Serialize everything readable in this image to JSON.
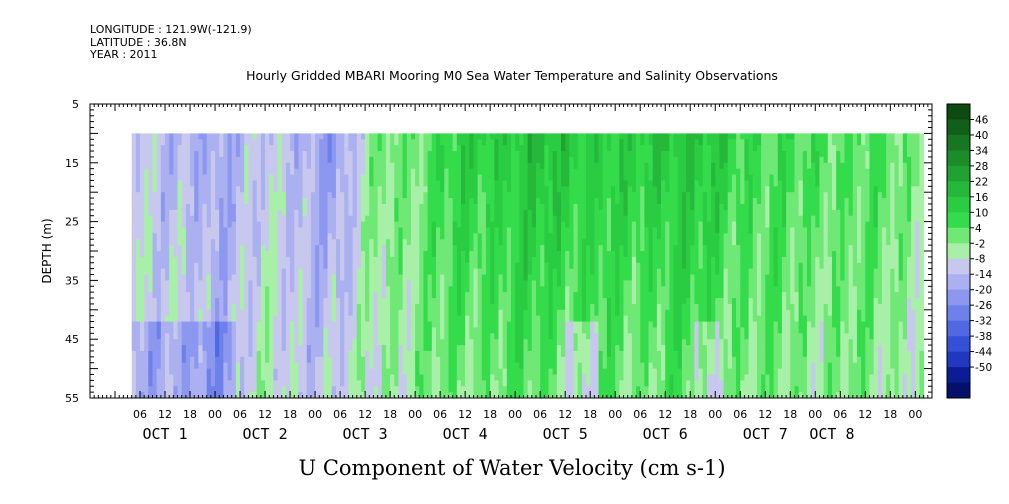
{
  "header": {
    "longitude": "LONGITUDE : 121.9W(-121.9)",
    "latitude": "LATITUDE : 36.8N",
    "year": "YEAR : 2011"
  },
  "chart_data": {
    "type": "heatmap",
    "title": "Hourly Gridded MBARI Mooring M0 Sea Water Temperature and Salinity Observations",
    "xlabel": "U Component of Water Velocity (cm s-1)",
    "ylabel": "DEPTH (m)",
    "x_unit": "hours after Oct 1 00:00",
    "xlim": [
      -30,
      172
    ],
    "data_xrange": [
      -20,
      170
    ],
    "ylim": [
      55,
      5
    ],
    "data_yrange": [
      10,
      55
    ],
    "hour_tick_labels": [
      "06",
      "12",
      "18",
      "00",
      "06",
      "12",
      "18",
      "00",
      "06",
      "12",
      "18",
      "00",
      "06",
      "12",
      "18",
      "00",
      "06",
      "12",
      "18",
      "00",
      "06",
      "12",
      "18",
      "00",
      "06",
      "12",
      "18",
      "00",
      "06",
      "12",
      "18",
      "00"
    ],
    "hour_tick_values": [
      -18,
      -12,
      -6,
      0,
      6,
      12,
      18,
      24,
      30,
      36,
      42,
      48,
      54,
      60,
      66,
      72,
      78,
      84,
      90,
      96,
      102,
      108,
      114,
      120,
      126,
      132,
      138,
      144,
      150,
      156,
      162,
      168
    ],
    "day_labels": [
      {
        "text": "OCT  1",
        "at": -12
      },
      {
        "text": "OCT  2",
        "at": 12
      },
      {
        "text": "OCT  3",
        "at": 36
      },
      {
        "text": "OCT  4",
        "at": 60
      },
      {
        "text": "OCT  5",
        "at": 84
      },
      {
        "text": "OCT  6",
        "at": 108
      },
      {
        "text": "OCT  7",
        "at": 132
      },
      {
        "text": "OCT  8",
        "at": 148
      }
    ],
    "y_ticks": [
      5,
      15,
      25,
      35,
      45,
      55
    ],
    "colorbar": {
      "levels": [
        48,
        46,
        40,
        34,
        28,
        22,
        16,
        10,
        4,
        -2,
        -8,
        -14,
        -20,
        -26,
        -32,
        -38,
        -44,
        -50
      ],
      "labels": [
        "46",
        "40",
        "34",
        "28",
        "22",
        "16",
        "10",
        "4",
        "-2",
        "-8",
        "-14",
        "-20",
        "-26",
        "-32",
        "-38",
        "-44",
        "-50"
      ],
      "colors": [
        "#0c4a12",
        "#11601a",
        "#167622",
        "#1b8c2a",
        "#20a232",
        "#25b83a",
        "#2acc42",
        "#34dc4c",
        "#6fe876",
        "#a8f0a8",
        "#c8c8ee",
        "#aab0f0",
        "#8c98f0",
        "#6e80ea",
        "#5068e2",
        "#3450d6",
        "#2038c0",
        "#0c1c96",
        "#04106a"
      ]
    },
    "series": [
      {
        "name": "",
        "x": [
          -20,
          -10,
          0,
          10,
          20,
          30,
          40,
          50,
          60,
          70,
          80,
          90,
          100,
          110,
          120,
          130,
          140,
          150,
          160,
          170
        ],
        "upper_mean_u": [
          -2,
          -8,
          -16,
          -4,
          -10,
          -14,
          6,
          10,
          18,
          20,
          22,
          20,
          16,
          24,
          18,
          14,
          10,
          12,
          8,
          6
        ]
      }
    ]
  }
}
